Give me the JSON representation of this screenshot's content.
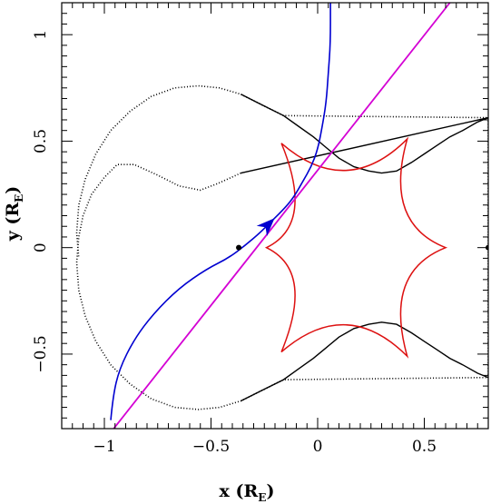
{
  "chart_data": {
    "type": "line",
    "xlabel": {
      "main": "x (R",
      "sub": "E",
      "close": ")"
    },
    "ylabel": {
      "main": "y (R",
      "sub": "E",
      "close": ")"
    },
    "xlim": [
      -1.2,
      0.8
    ],
    "ylim": [
      -0.85,
      1.15
    ],
    "xticks_major": [
      -1,
      -0.5,
      0,
      0.5
    ],
    "xtick_labels": [
      "−1",
      "−0.5",
      "0",
      "0.5"
    ],
    "yticks_major": [
      -0.5,
      0,
      0.5,
      1
    ],
    "ytick_labels": [
      "−0.5",
      "0",
      "0.5",
      "1"
    ],
    "lenses": [
      {
        "x": -0.37,
        "y": 0.0
      },
      {
        "x": 0.8,
        "y": 0.0
      }
    ],
    "critical_curve": [
      [
        -0.36,
        0.35
      ],
      [
        -0.47,
        0.3
      ],
      [
        -0.55,
        0.27
      ],
      [
        -0.65,
        0.29
      ],
      [
        -0.75,
        0.34
      ],
      [
        -0.86,
        0.39
      ],
      [
        -0.94,
        0.39
      ],
      [
        -1.0,
        0.33
      ],
      [
        -1.06,
        0.25
      ],
      [
        -1.1,
        0.15
      ],
      [
        -1.12,
        0.05
      ],
      [
        -1.13,
        -0.07
      ],
      [
        -1.12,
        -0.2
      ],
      [
        -1.09,
        -0.32
      ],
      [
        -1.04,
        -0.44
      ],
      [
        -0.97,
        -0.55
      ],
      [
        -0.88,
        -0.64
      ],
      [
        -0.78,
        -0.71
      ],
      [
        -0.67,
        -0.75
      ],
      [
        -0.56,
        -0.76
      ],
      [
        -0.46,
        -0.75
      ],
      [
        -0.36,
        -0.72
      ],
      [
        -0.26,
        -0.67
      ],
      [
        -0.16,
        -0.62
      ],
      [
        -0.09,
        -0.57
      ],
      [
        -0.02,
        -0.52
      ],
      [
        0.04,
        -0.47
      ],
      [
        0.1,
        -0.42
      ],
      [
        0.17,
        -0.38
      ],
      [
        0.24,
        -0.36
      ],
      [
        0.3,
        -0.35
      ],
      [
        0.37,
        -0.36
      ],
      [
        0.44,
        -0.4
      ],
      [
        0.5,
        -0.44
      ],
      [
        0.56,
        -0.48
      ],
      [
        0.62,
        -0.52
      ],
      [
        0.68,
        -0.55
      ],
      [
        0.75,
        -0.59
      ],
      [
        0.8,
        -0.61
      ],
      [
        0.8,
        0.61
      ],
      [
        0.75,
        0.59
      ],
      [
        0.68,
        0.55
      ],
      [
        0.62,
        0.52
      ],
      [
        0.56,
        0.48
      ],
      [
        0.5,
        0.44
      ],
      [
        0.44,
        0.4
      ],
      [
        0.37,
        0.36
      ],
      [
        0.3,
        0.35
      ],
      [
        0.24,
        0.36
      ],
      [
        0.17,
        0.38
      ],
      [
        0.1,
        0.42
      ],
      [
        0.04,
        0.47
      ],
      [
        -0.02,
        0.52
      ],
      [
        -0.09,
        0.57
      ],
      [
        -0.16,
        0.62
      ],
      [
        -0.26,
        0.67
      ],
      [
        -0.36,
        0.72
      ],
      [
        -0.46,
        0.75
      ],
      [
        -0.56,
        0.76
      ],
      [
        -0.67,
        0.75
      ],
      [
        -0.78,
        0.71
      ],
      [
        -0.88,
        0.64
      ],
      [
        -0.97,
        0.55
      ],
      [
        -1.04,
        0.44
      ],
      [
        -1.09,
        0.32
      ],
      [
        -1.12,
        0.2
      ],
      [
        -1.13,
        0.07
      ],
      [
        -1.12,
        -0.05
      ]
    ],
    "caustic_cusps": [
      [
        0.6,
        0.0
      ],
      [
        0.42,
        0.51
      ],
      [
        -0.17,
        0.49
      ],
      [
        -0.24,
        0.0
      ],
      [
        -0.17,
        -0.49
      ],
      [
        0.42,
        -0.51
      ]
    ],
    "source_trajectory": {
      "x1": -0.98,
      "y1": -0.88,
      "x2": 0.62,
      "y2": 1.15
    },
    "source_image_track": [
      [
        -0.97,
        -0.81
      ],
      [
        -0.96,
        -0.7
      ],
      [
        -0.93,
        -0.57
      ],
      [
        -0.86,
        -0.43
      ],
      [
        -0.77,
        -0.31
      ],
      [
        -0.65,
        -0.19
      ],
      [
        -0.52,
        -0.1
      ],
      [
        -0.42,
        -0.05
      ],
      [
        -0.34,
        0.01
      ],
      [
        -0.27,
        0.07
      ],
      [
        -0.21,
        0.13
      ],
      [
        -0.15,
        0.19
      ],
      [
        -0.11,
        0.24
      ],
      [
        -0.07,
        0.31
      ],
      [
        -0.03,
        0.38
      ],
      [
        0.0,
        0.46
      ],
      [
        0.02,
        0.56
      ],
      [
        0.04,
        0.68
      ],
      [
        0.05,
        0.82
      ],
      [
        0.06,
        0.96
      ],
      [
        0.06,
        1.15
      ]
    ],
    "arrow": {
      "x": -0.22,
      "y": 0.12
    },
    "colors": {
      "caustic": "#dd1111",
      "critical_curve": "#000000",
      "trajectory": "#d400d4",
      "image_track": "#0000d0",
      "axes": "#000000"
    },
    "grid": false,
    "legend": "none"
  }
}
